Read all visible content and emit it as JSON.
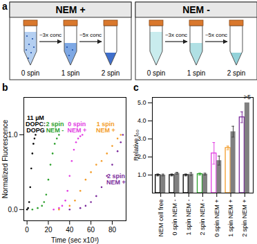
{
  "chart_data": [
    {
      "type": "diagram",
      "title": "a",
      "panels": [
        {
          "label": "NEM +",
          "steps": [
            "~3x conc",
            "~5x conc"
          ],
          "tubes": [
            "0 spin",
            "1 spin",
            "2 spin"
          ]
        },
        {
          "label": "NEM -",
          "steps": [
            "~3x conc",
            "~5x conc"
          ],
          "tubes": [
            "0 spin",
            "1 spin",
            "2 spin"
          ]
        }
      ]
    },
    {
      "type": "scatter",
      "title": "b",
      "x_label": "Time (sec x10³)",
      "y_label": "Normalized Fluorescence",
      "xlim": [
        -3,
        93
      ],
      "ylim": [
        -0.15,
        1.5
      ],
      "xticks": [
        0,
        20,
        40,
        60,
        80
      ],
      "yticks": [
        0,
        1
      ],
      "series": [
        {
          "name": "11 µM\nDOPC:\nDOPG",
          "color": "#000000",
          "x": [
            0,
            1,
            2,
            3,
            4,
            5,
            6,
            7,
            8
          ],
          "values": [
            0,
            0.02,
            0.1,
            0.3,
            0.55,
            0.75,
            0.88,
            0.95,
            1.0
          ]
        },
        {
          "name": "2 spin\nNEM -",
          "color": "#2ca02c",
          "x": [
            5,
            10,
            14,
            16,
            18,
            20,
            22,
            24,
            26,
            28,
            30
          ],
          "values": [
            0,
            0.02,
            0.05,
            0.1,
            0.2,
            0.4,
            0.6,
            0.75,
            0.88,
            0.95,
            1.0
          ]
        },
        {
          "name": "0 spin\nNEM +",
          "color": "#e23ce2",
          "x": [
            25,
            30,
            33,
            36,
            38,
            40,
            42,
            44,
            46,
            48,
            50,
            52
          ],
          "values": [
            0,
            0.02,
            0.05,
            0.12,
            0.25,
            0.45,
            0.65,
            0.8,
            0.9,
            0.95,
            0.98,
            1.0
          ]
        },
        {
          "name": "1 spin\nNEM +",
          "color": "#f39c28",
          "x": [
            30,
            40,
            45,
            50,
            55,
            60,
            65,
            70,
            75,
            80,
            85,
            88
          ],
          "values": [
            0,
            0.05,
            0.12,
            0.25,
            0.4,
            0.5,
            0.6,
            0.65,
            0.75,
            0.85,
            0.95,
            1.0
          ]
        },
        {
          "name": "2 spin\nNEM +",
          "color": "#7b2a9b",
          "x": [
            40,
            50,
            55,
            60,
            65,
            70,
            75,
            80,
            85,
            88,
            90
          ],
          "values": [
            0,
            0.02,
            0.05,
            0.1,
            0.18,
            0.3,
            0.45,
            0.6,
            0.78,
            0.9,
            1.0
          ]
        }
      ]
    },
    {
      "type": "bar",
      "title": "c",
      "y_label": "Relative t₅₀",
      "categories": [
        "NEM cell free",
        "0 spin NEM -",
        "1 spin NEM -",
        "2 spin NEM -",
        "0 spin NEM +",
        "1 spin NEM +",
        "2 spin NEM +"
      ],
      "ylim": [
        0,
        5.3
      ],
      "yticks": [
        1,
        2,
        3,
        4,
        5
      ],
      "series": [
        {
          "colors": [
            "#000000",
            "#000000",
            "#000000",
            "#2ca02c",
            "#e23ce2",
            "#f39c28",
            "#7b2a9b"
          ],
          "values": [
            1,
            1,
            1,
            1.05,
            2.2,
            2.5,
            4.2
          ],
          "errors": [
            0.05,
            0.05,
            0.05,
            0.05,
            0.6,
            0.1,
            0.3
          ]
        },
        {
          "color": "#808080",
          "values": [
            1,
            1.1,
            1.05,
            1.05,
            1.8,
            3.4,
            5
          ],
          "errors": [
            0.05,
            0.05,
            0.08,
            0.05,
            0.25,
            0.3,
            null
          ]
        }
      ],
      "annotations": [
        {
          "text": ">5",
          "category": "2 spin NEM +",
          "series": 1,
          "y": 5
        }
      ]
    }
  ]
}
